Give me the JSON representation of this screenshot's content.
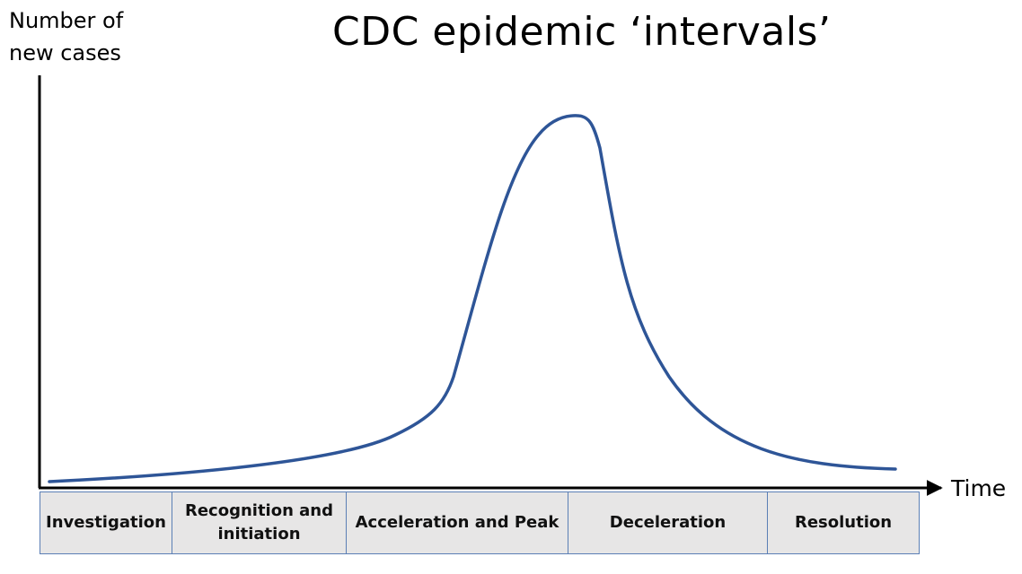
{
  "title": "CDC epidemic ‘intervals’",
  "y_axis_label": "Number of\nnew cases",
  "x_axis_label": "Time",
  "curve_color": "#2e5597",
  "axis_color": "#000000",
  "phase_fill": "#e7e6e6",
  "phase_border": "#5b7fb5",
  "phases": [
    {
      "label": "Investigation"
    },
    {
      "label": "Recognition and initiation"
    },
    {
      "label": "Acceleration and Peak"
    },
    {
      "label": "Deceleration"
    },
    {
      "label": "Resolution"
    }
  ]
}
